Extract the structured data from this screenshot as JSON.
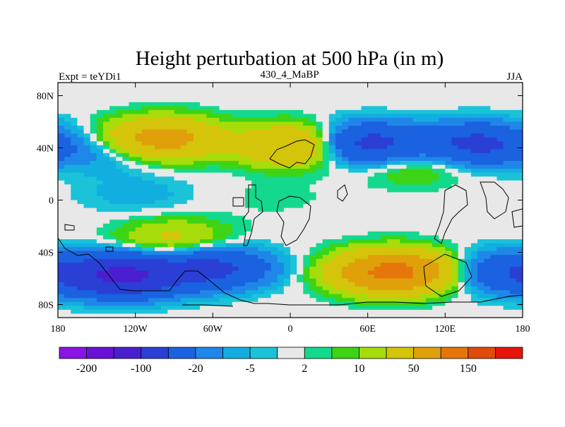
{
  "chart_data": {
    "type": "heatmap",
    "title": "Height perturbation at 500 hPa (in m)",
    "subtitle_left": "Expt = teYDi1",
    "subtitle_center": "430_4_MaBP",
    "subtitle_right": "JJA",
    "xlim": [
      -180,
      180
    ],
    "ylim": [
      -90,
      90
    ],
    "x_ticks": [
      {
        "value": -180,
        "label": "180"
      },
      {
        "value": -120,
        "label": "120W"
      },
      {
        "value": -60,
        "label": "60W"
      },
      {
        "value": 0,
        "label": "0"
      },
      {
        "value": 60,
        "label": "60E"
      },
      {
        "value": 120,
        "label": "120E"
      },
      {
        "value": 180,
        "label": "180"
      }
    ],
    "y_ticks": [
      {
        "value": 80,
        "label": "80N"
      },
      {
        "value": 40,
        "label": "40N"
      },
      {
        "value": 0,
        "label": "0"
      },
      {
        "value": -40,
        "label": "40S"
      },
      {
        "value": -80,
        "label": "80S"
      }
    ],
    "colorbar": {
      "bin_colors": [
        "#8a14e6",
        "#6a12d6",
        "#4a1fd0",
        "#2a3fd6",
        "#1a62e0",
        "#1f87e8",
        "#12aee0",
        "#1bc3d8",
        "#e8e8e8",
        "#14d98c",
        "#3cd414",
        "#a6dc0a",
        "#d4c40a",
        "#e0a00a",
        "#e6760a",
        "#e04a0a",
        "#e6140a"
      ],
      "bin_boundaries": [
        -500,
        -200,
        -150,
        -100,
        -50,
        -20,
        -10,
        -5,
        -2,
        2,
        5,
        10,
        20,
        50,
        100,
        150,
        200,
        500
      ],
      "tick_labels": [
        {
          "bin": 1,
          "label": "-200"
        },
        {
          "bin": 3,
          "label": "-100"
        },
        {
          "bin": 5,
          "label": "-20"
        },
        {
          "bin": 7,
          "label": "-5"
        },
        {
          "bin": 9,
          "label": "2"
        },
        {
          "bin": 11,
          "label": "10"
        },
        {
          "bin": 13,
          "label": "50"
        },
        {
          "bin": 15,
          "label": "150"
        }
      ]
    },
    "field_anomalies_m": [
      {
        "name": "nh-midlat-positive-west",
        "lon": -100,
        "lat": 47,
        "value": 70
      },
      {
        "name": "nh-midlat-positive-central",
        "lon": 5,
        "lat": 42,
        "value": 60
      },
      {
        "name": "nh-midlat-negative-west",
        "lon": -140,
        "lat": 37,
        "value": -15
      },
      {
        "name": "nh-midlat-negative-east",
        "lon": 57,
        "lat": 43,
        "value": -70
      },
      {
        "name": "nh-midlat-negative-far-east",
        "lon": 145,
        "lat": 43,
        "value": -60
      },
      {
        "name": "nh-subtropical-positive-east",
        "lon": 95,
        "lat": 27,
        "value": 15
      },
      {
        "name": "tropics-negative-west",
        "lon": -120,
        "lat": 5,
        "value": -8
      },
      {
        "name": "tropics-positive-central",
        "lon": -10,
        "lat": 2,
        "value": 3
      },
      {
        "name": "sh-subtropical-positive",
        "lon": -90,
        "lat": -30,
        "value": 25
      },
      {
        "name": "sh-midlat-negative-west",
        "lon": -130,
        "lat": -58,
        "value": -110
      },
      {
        "name": "sh-midlat-negative-central",
        "lon": -60,
        "lat": -52,
        "value": -60
      },
      {
        "name": "sh-midlat-positive-east",
        "lon": 80,
        "lat": -55,
        "value": 120
      },
      {
        "name": "sh-midlat-negative-pacific",
        "lon": 165,
        "lat": -55,
        "value": -40
      }
    ]
  }
}
